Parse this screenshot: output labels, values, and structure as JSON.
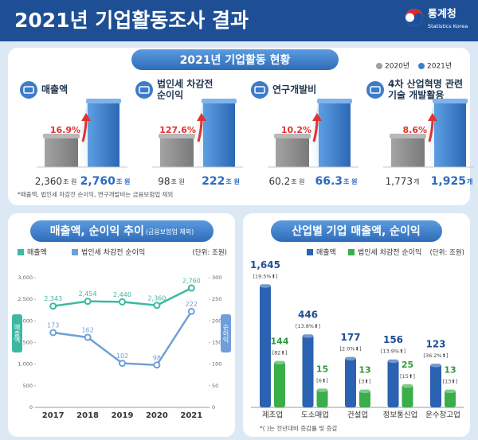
{
  "header": {
    "title": "2021년 기업활동조사 결과",
    "org": "통계청",
    "org_en": "Statistics Korea"
  },
  "summary": {
    "title": "2021년 기업활동 현황",
    "legend": [
      "2020년",
      "2021년"
    ],
    "items": [
      {
        "label_lines": [
          "매출액"
        ],
        "before": "2,360",
        "after": "2,760",
        "unit": "조 원",
        "change": "16.9%"
      },
      {
        "label_lines": [
          "법인세 차감전",
          "순이익"
        ],
        "before": "98",
        "after": "222",
        "unit": "조 원",
        "change": "127.6%"
      },
      {
        "label_lines": [
          "연구개발비"
        ],
        "before": "60.2",
        "after": "66.3",
        "unit": "조 원",
        "change": "10.2%"
      },
      {
        "label_lines": [
          "4차 산업혁명 관련",
          "기술 개발활용"
        ],
        "before": "1,773",
        "after": "1,925",
        "unit": "개",
        "change": "8.6%"
      }
    ],
    "note": "*매출액, 법인세 차감전 순이익, 연구개발비는 금융보험업 제외"
  },
  "chart_data": [
    {
      "type": "line",
      "title": "매출액, 순이익 추이",
      "subtitle": "(금융보험업 제외)",
      "unit": "(단위: 조원)",
      "y_label": "매출액",
      "y2_label": "순이익",
      "categories": [
        "2017",
        "2018",
        "2019",
        "2020",
        "2021"
      ],
      "series": [
        {
          "name": "매출액",
          "color": "#3db8a2",
          "values": [
            2343,
            2454,
            2440,
            2360,
            2760
          ],
          "value_labels": [
            "2,343",
            "2,454",
            "2,440",
            "2,360",
            "2,760"
          ]
        },
        {
          "name": "법인세 차감전 순이익",
          "color": "#6f9fd8",
          "axis": "y2",
          "values": [
            173,
            162,
            102,
            98,
            222
          ]
        }
      ],
      "ylim": [
        0,
        3000
      ],
      "yticks": [
        0,
        500,
        {
          "value": 1000,
          "label": "1,000"
        },
        {
          "value": 1500,
          "label": "1,500"
        },
        {
          "value": 2000,
          "label": "2,000"
        },
        {
          "value": 2500,
          "label": "2,500"
        },
        {
          "value": 3000,
          "label": "3,000"
        }
      ],
      "y2lim": [
        0,
        300
      ],
      "y2ticks": [
        0,
        50,
        100,
        150,
        200,
        250,
        300
      ],
      "grid": false
    },
    {
      "type": "bar",
      "title": "산업별 기업 매출액, 순이익",
      "unit": "(단위: 조원)",
      "categories": [
        "제조업",
        "도소매업",
        "건설업",
        "정보통신업",
        "운수창고업"
      ],
      "series": [
        {
          "name": "매출액",
          "color": "#2b62b2",
          "values": [
            1645,
            446,
            177,
            156,
            123
          ],
          "value_labels": [
            "1,645",
            "446",
            "177",
            "156",
            "123"
          ],
          "change_labels": [
            "[19.5%⬆]",
            "[13.8%⬆]",
            "[2.0%⬆]",
            "[13.9%⬆]",
            "[36.2%⬆]"
          ]
        },
        {
          "name": "법인세 차감전 순이익",
          "color": "#3aae49",
          "values": [
            144,
            15,
            13,
            25,
            13
          ],
          "change_labels": [
            "[82⬆]",
            "[6⬆]",
            "[3⬆]",
            "[15⬆]",
            "[13⬆]"
          ]
        }
      ],
      "note": "*( )는 전년대비 증감률 및 증감"
    }
  ]
}
